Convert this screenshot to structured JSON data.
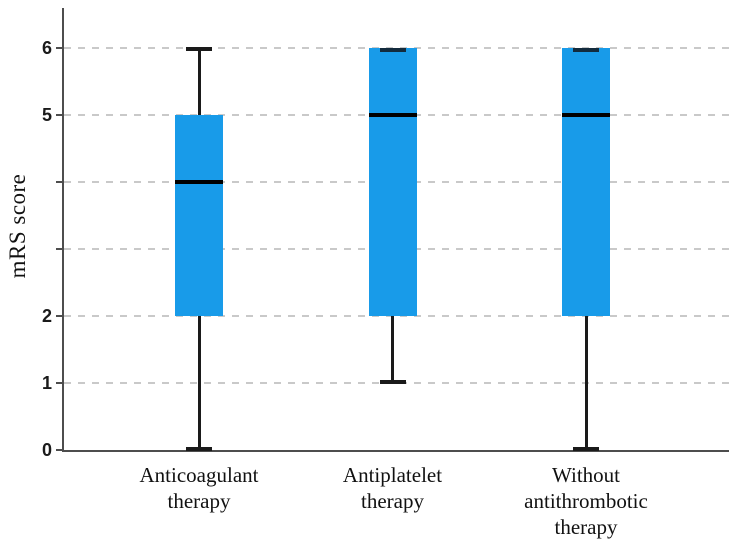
{
  "figure": {
    "background": "#ffffff"
  },
  "chart_data": {
    "type": "boxplot",
    "title": "",
    "xlabel": "",
    "ylabel": "mRS score",
    "ylim": [
      0,
      6
    ],
    "yticks": [
      0,
      1,
      2,
      3,
      4,
      5,
      6
    ],
    "ytick_labels_shown": [
      "0",
      "1",
      "2",
      "5",
      "6"
    ],
    "grid": "horizontal-dashed",
    "legend": "none",
    "categories": [
      "Anticoagulant therapy",
      "Antiplatelet therapy",
      "Without antithrombotic therapy"
    ],
    "category_label_lines": [
      [
        "Anticoagulant",
        "therapy"
      ],
      [
        "Antiplatelet",
        "therapy"
      ],
      [
        "Without",
        "antithrombotic",
        "therapy"
      ]
    ],
    "series": [
      {
        "label": "Anticoagulant therapy",
        "whisker_low": 0,
        "q1": 2,
        "median": 4,
        "q3": 5,
        "whisker_high": 6
      },
      {
        "label": "Antiplatelet therapy",
        "whisker_low": 1,
        "q1": 2,
        "median": 5,
        "q3": 6,
        "whisker_high": 6
      },
      {
        "label": "Without antithrombotic therapy",
        "whisker_low": 0,
        "q1": 2,
        "median": 5,
        "q3": 6,
        "whisker_high": 6
      }
    ],
    "colors": {
      "box_fill": "#189BE9",
      "median": "#000000",
      "whisker": "#1a1a1a",
      "box_top_cap": "#132b3d",
      "gridline": "#c9c9c9",
      "axis": "#4d4d4d",
      "text": "#111111"
    }
  }
}
